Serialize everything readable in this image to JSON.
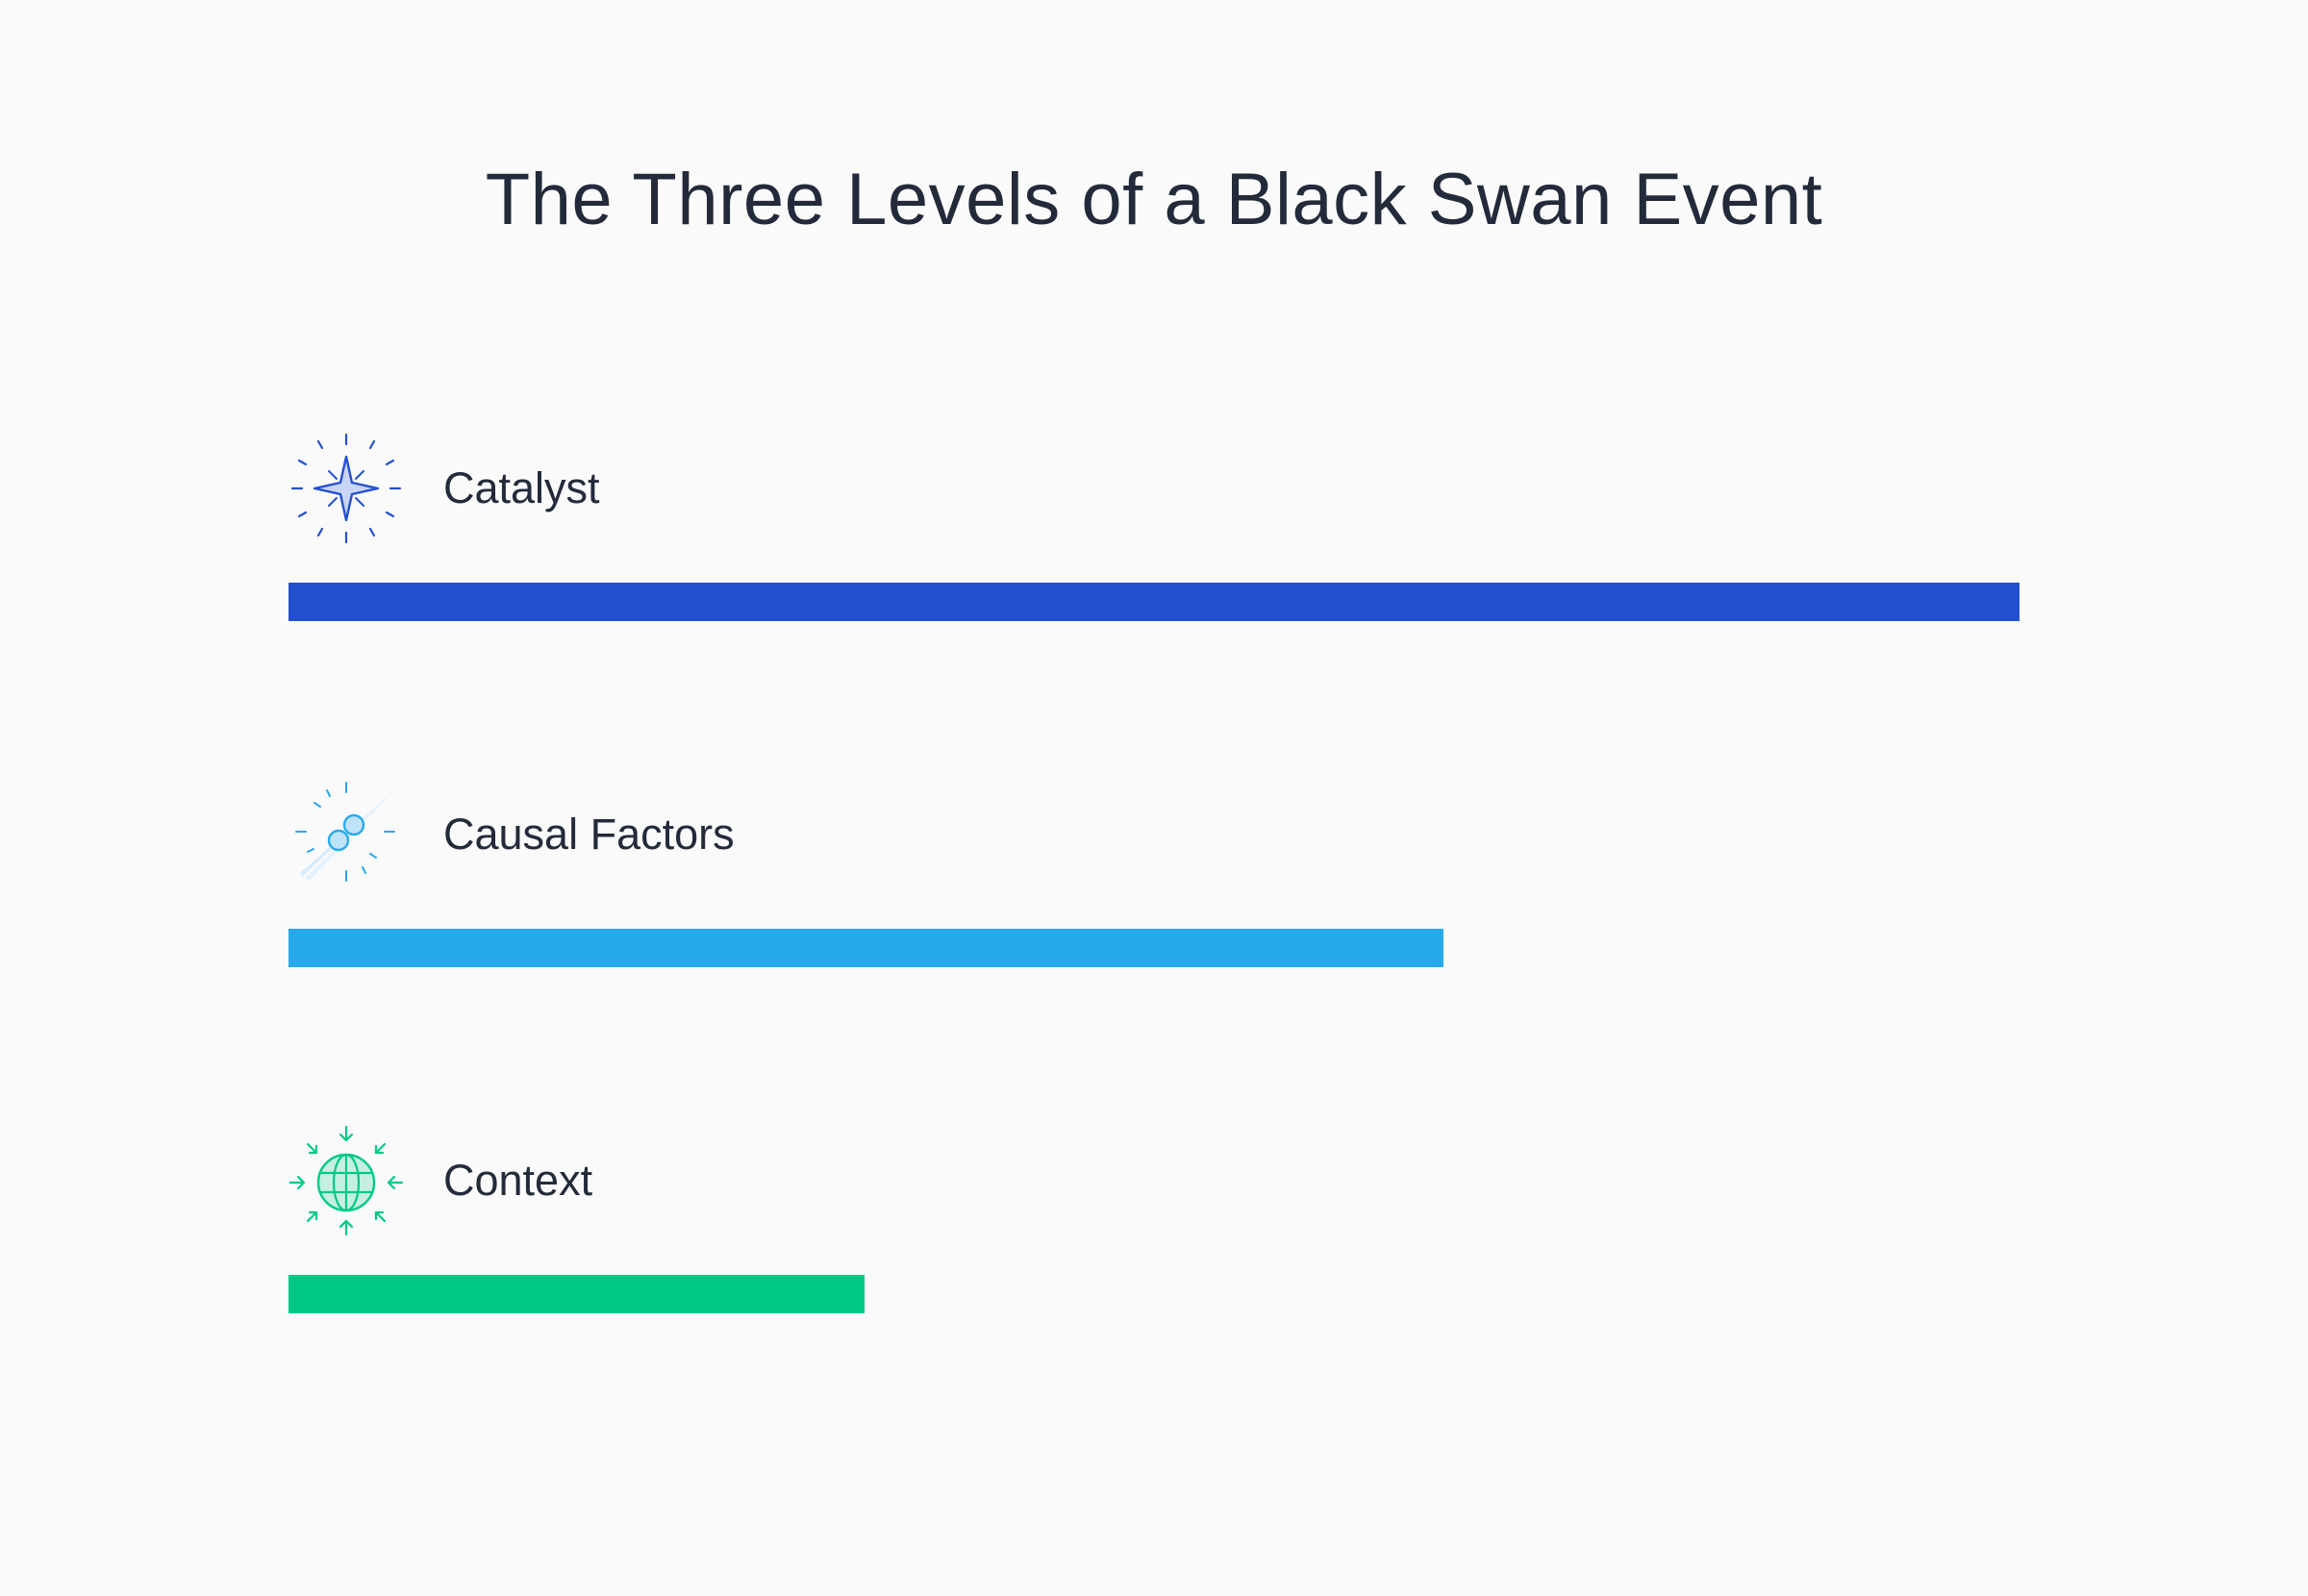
{
  "title": "The Three Levels of a Black Swan Event",
  "levels": [
    {
      "label": "Catalyst",
      "icon": "sparkle-star-icon",
      "color": "#2350cf",
      "fraction": 1.0
    },
    {
      "label": "Causal Factors",
      "icon": "linked-molecule-icon",
      "color": "#27a9ec",
      "fraction": 0.667
    },
    {
      "label": "Context",
      "icon": "globe-arrows-icon",
      "color": "#00c987",
      "fraction": 0.333
    }
  ]
}
